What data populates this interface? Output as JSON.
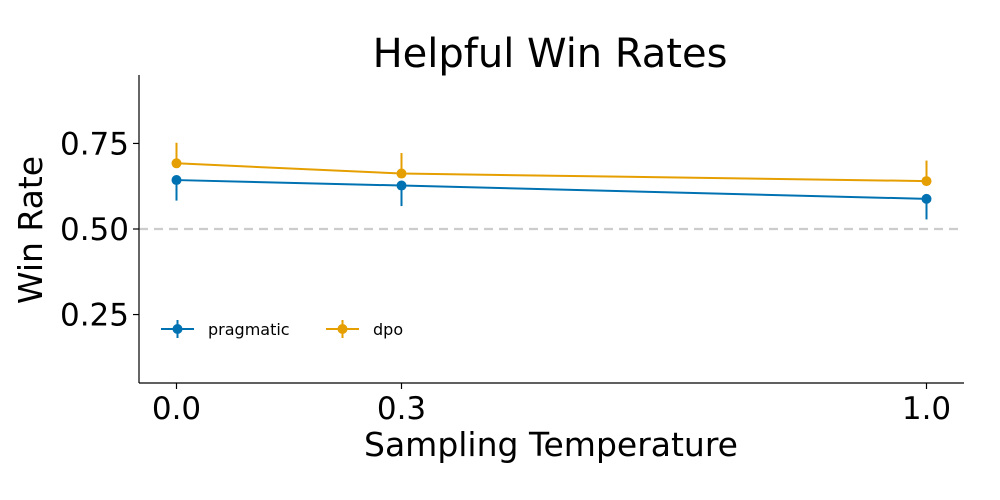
{
  "chart_data": {
    "type": "line",
    "title": "Helpful Win Rates",
    "xlabel": "Sampling Temperature",
    "ylabel": "Win Rate",
    "x_ticks": [
      0.0,
      0.3,
      1.0
    ],
    "x_tick_labels": [
      "0.0",
      "0.3",
      "1.0"
    ],
    "y_ticks": [
      0.25,
      0.5,
      0.75
    ],
    "y_tick_labels": [
      "0.25",
      "0.50",
      "0.75"
    ],
    "xlim": [
      -0.05,
      1.05
    ],
    "ylim": [
      0.05,
      0.95
    ],
    "reference_line": {
      "y": 0.5,
      "style": "dashed",
      "color": "#cccccc"
    },
    "grid": false,
    "legend_position": "lower-left",
    "series": [
      {
        "name": "pragmatic",
        "color": "#0072b2",
        "x": [
          0.0,
          0.3,
          1.0
        ],
        "y": [
          0.643,
          0.627,
          0.588
        ],
        "yerr_low": [
          0.583,
          0.567,
          0.528
        ],
        "yerr_high": [
          0.643,
          0.627,
          0.588
        ]
      },
      {
        "name": "dpo",
        "color": "#e69f00",
        "x": [
          0.0,
          0.3,
          1.0
        ],
        "y": [
          0.692,
          0.662,
          0.64
        ],
        "yerr_low": [
          0.692,
          0.662,
          0.64
        ],
        "yerr_high": [
          0.752,
          0.722,
          0.7
        ]
      }
    ]
  }
}
